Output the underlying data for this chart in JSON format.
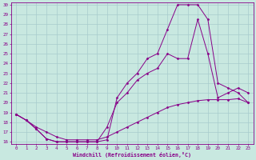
{
  "xlabel": "Windchill (Refroidissement éolien,°C)",
  "xlim": [
    -0.5,
    23.5
  ],
  "ylim": [
    15.8,
    30.2
  ],
  "xticks": [
    0,
    1,
    2,
    3,
    4,
    5,
    6,
    7,
    8,
    9,
    10,
    11,
    12,
    13,
    14,
    15,
    16,
    17,
    18,
    19,
    20,
    21,
    22,
    23
  ],
  "yticks": [
    16,
    17,
    18,
    19,
    20,
    21,
    22,
    23,
    24,
    25,
    26,
    27,
    28,
    29,
    30
  ],
  "line_color": "#880088",
  "bg_color": "#c8e8e0",
  "grid_color": "#a8cccc",
  "line1_x": [
    0,
    1,
    2,
    3,
    4,
    5,
    6,
    7,
    8,
    9,
    10,
    11,
    12,
    13,
    14,
    15,
    16,
    17,
    18,
    19,
    20,
    21,
    22,
    23
  ],
  "line1_y": [
    18.8,
    18.2,
    17.5,
    17.0,
    16.5,
    16.2,
    16.2,
    16.2,
    16.2,
    16.5,
    17.0,
    17.5,
    18.0,
    18.5,
    19.0,
    19.5,
    19.8,
    20.0,
    20.2,
    20.3,
    20.3,
    20.3,
    20.4,
    20.0
  ],
  "line2_x": [
    0,
    1,
    2,
    3,
    4,
    5,
    6,
    7,
    8,
    9,
    10,
    11,
    12,
    13,
    14,
    15,
    16,
    17,
    18,
    19,
    20,
    21,
    22,
    23
  ],
  "line2_y": [
    18.8,
    18.2,
    17.3,
    16.3,
    16.0,
    16.0,
    16.0,
    16.0,
    16.0,
    17.5,
    20.0,
    21.0,
    22.3,
    23.0,
    23.5,
    25.0,
    24.5,
    24.5,
    28.5,
    25.0,
    20.5,
    21.0,
    21.5,
    21.0
  ],
  "line3_x": [
    0,
    1,
    2,
    3,
    4,
    5,
    6,
    7,
    8,
    9,
    10,
    11,
    12,
    13,
    14,
    15,
    16,
    17,
    18,
    19,
    20,
    21,
    22,
    23
  ],
  "line3_y": [
    18.8,
    18.2,
    17.3,
    16.3,
    16.0,
    16.0,
    16.0,
    16.0,
    16.0,
    16.2,
    20.5,
    22.0,
    23.0,
    24.5,
    25.0,
    27.5,
    30.0,
    30.0,
    30.0,
    28.5,
    22.0,
    21.5,
    21.0,
    20.0
  ]
}
